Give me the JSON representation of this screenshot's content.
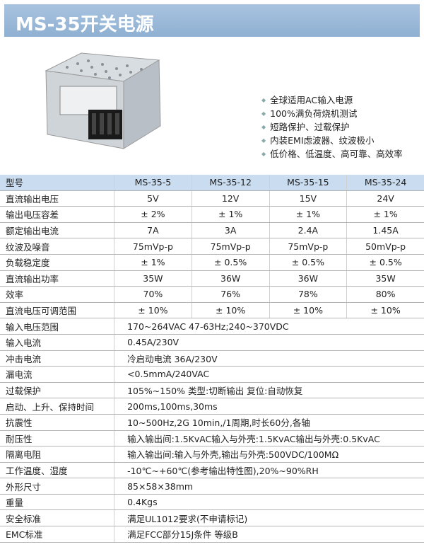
{
  "header": {
    "title": "MS-35开关电源"
  },
  "features": [
    "全球适用AC输入电源",
    "100%满负荷烧机测试",
    "短路保护、过载保护",
    "内装EMI虑波器、纹波极小",
    "低价格、低温度、高可靠、高效率"
  ],
  "table": {
    "columns": [
      "型号",
      "MS-35-5",
      "MS-35-12",
      "MS-35-15",
      "MS-35-24"
    ],
    "rows": [
      {
        "label": "直流输出电压",
        "values": [
          "5V",
          "12V",
          "15V",
          "24V"
        ]
      },
      {
        "label": "输出电压容差",
        "values": [
          "± 2%",
          "± 1%",
          "± 1%",
          "± 1%"
        ]
      },
      {
        "label": "额定输出电流",
        "values": [
          "7A",
          "3A",
          "2.4A",
          "1.45A"
        ]
      },
      {
        "label": "纹波及噪音",
        "values": [
          "75mVp-p",
          "75mVp-p",
          "75mVp-p",
          "50mVp-p"
        ]
      },
      {
        "label": "负载稳定度",
        "values": [
          "± 1%",
          "± 0.5%",
          "± 0.5%",
          "± 0.5%"
        ]
      },
      {
        "label": "直流输出功率",
        "values": [
          "35W",
          "36W",
          "36W",
          "35W"
        ]
      },
      {
        "label": "效率",
        "values": [
          "70%",
          "76%",
          "78%",
          "80%"
        ]
      },
      {
        "label": "直流电压可调范围",
        "values": [
          "± 10%",
          "± 10%",
          "± 10%",
          "± 10%"
        ]
      }
    ],
    "spec_rows": [
      {
        "label": "输入电压范围",
        "value": "170~264VAC 47-63Hz;240~370VDC"
      },
      {
        "label": "输入电流",
        "value": "0.45A/230V"
      },
      {
        "label": "冲击电流",
        "value": "冷启动电流 36A/230V"
      },
      {
        "label": "漏电流",
        "value": "<0.5mmA/240VAC"
      },
      {
        "label": "过载保护",
        "value": "105%~150% 类型:切断输出  复位:自动恢复"
      },
      {
        "label": "启动、上升、保持时间",
        "value": "200ms,100ms,30ms"
      },
      {
        "label": "抗震性",
        "value": "10~500Hz,2G 10min,/1周期,时长60分,各轴"
      },
      {
        "label": "耐压性",
        "value": "输入输出间:1.5KvAC输入与外壳:1.5KvAC输出与外壳:0.5KvAC"
      },
      {
        "label": "隔离电阻",
        "value": "输入输出间:输入与外壳,输出与外壳:500VDC/100MΩ"
      },
      {
        "label": "工作温度、湿度",
        "value": "-10℃~+60℃(参考输出特性图),20%~90%RH"
      },
      {
        "label": "外形尺寸",
        "value": "85×58×38mm"
      },
      {
        "label": "重量",
        "value": "0.4Kgs"
      },
      {
        "label": "安全标准",
        "value": "满足UL1012要求(不申请标记)"
      },
      {
        "label": "EMC标准",
        "value": "满足FCC部分15J条件 等级B"
      }
    ]
  }
}
